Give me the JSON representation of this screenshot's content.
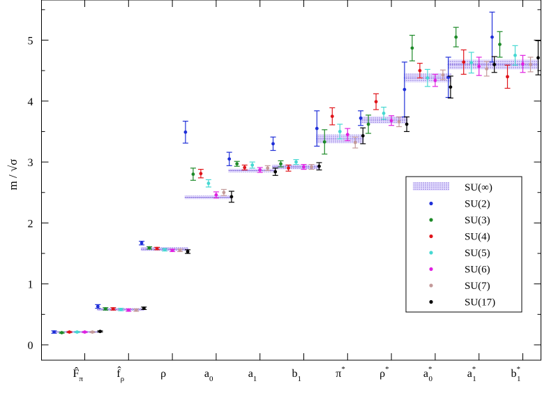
{
  "chart_data": {
    "type": "scatter",
    "ylabel": "m / √σ",
    "xlabel": "",
    "ylim": [
      -0.25,
      5.6
    ],
    "yticks": [
      0,
      1,
      2,
      3,
      4,
      5
    ],
    "grid": false,
    "legend_position": "right",
    "categories": [
      {
        "base": "F̂",
        "sub": "π",
        "sup": ""
      },
      {
        "base": "f̂",
        "sub": "ρ",
        "sup": ""
      },
      {
        "base": "ρ",
        "sub": "",
        "sup": ""
      },
      {
        "base": "a",
        "sub": "0",
        "sup": ""
      },
      {
        "base": "a",
        "sub": "1",
        "sup": ""
      },
      {
        "base": "b",
        "sub": "1",
        "sup": ""
      },
      {
        "base": "π",
        "sub": "",
        "sup": "*"
      },
      {
        "base": "ρ",
        "sub": "",
        "sup": "*"
      },
      {
        "base": "a",
        "sub": "0",
        "sup": "*"
      },
      {
        "base": "a",
        "sub": "1",
        "sup": "*"
      },
      {
        "base": "b",
        "sub": "1",
        "sup": "*"
      }
    ],
    "band": {
      "name": "SU(∞)",
      "color": "#7b61d9",
      "values": [
        0.21,
        0.58,
        1.57,
        2.42,
        2.86,
        2.92,
        3.38,
        3.69,
        4.38,
        4.6,
        4.6
      ],
      "errors": [
        0.01,
        0.02,
        0.03,
        0.03,
        0.03,
        0.04,
        0.07,
        0.06,
        0.07,
        0.08,
        0.08
      ]
    },
    "series": [
      {
        "name": "SU(2)",
        "color": "#1f2fd8",
        "values": [
          0.21,
          0.63,
          1.67,
          3.49,
          3.05,
          3.3,
          3.55,
          3.72,
          4.19,
          4.39,
          5.05
        ],
        "errors": [
          0.02,
          0.03,
          0.03,
          0.18,
          0.11,
          0.11,
          0.29,
          0.12,
          0.45,
          0.33,
          0.41
        ]
      },
      {
        "name": "SU(3)",
        "color": "#1d8a28",
        "values": [
          0.2,
          0.59,
          1.59,
          2.8,
          2.97,
          2.97,
          3.33,
          3.62,
          4.87,
          5.05,
          4.93
        ],
        "errors": [
          0.01,
          0.02,
          0.02,
          0.1,
          0.04,
          0.05,
          0.2,
          0.15,
          0.21,
          0.16,
          0.21
        ]
      },
      {
        "name": "SU(4)",
        "color": "#e0141a",
        "values": [
          0.21,
          0.59,
          1.58,
          2.81,
          2.91,
          2.9,
          3.75,
          3.99,
          4.5,
          4.64,
          4.4
        ],
        "errors": [
          0.01,
          0.02,
          0.02,
          0.07,
          0.04,
          0.05,
          0.14,
          0.13,
          0.12,
          0.2,
          0.19
        ]
      },
      {
        "name": "SU(5)",
        "color": "#46d8d2",
        "values": [
          0.21,
          0.58,
          1.56,
          2.65,
          2.95,
          3.0,
          3.5,
          3.8,
          4.38,
          4.63,
          4.75
        ],
        "errors": [
          0.01,
          0.02,
          0.02,
          0.06,
          0.05,
          0.04,
          0.12,
          0.1,
          0.14,
          0.17,
          0.16
        ]
      },
      {
        "name": "SU(6)",
        "color": "#e020e0",
        "values": [
          0.21,
          0.57,
          1.55,
          2.46,
          2.87,
          2.92,
          3.45,
          3.68,
          4.34,
          4.57,
          4.61
        ],
        "errors": [
          0.01,
          0.02,
          0.02,
          0.05,
          0.04,
          0.04,
          0.1,
          0.08,
          0.1,
          0.15,
          0.14
        ]
      },
      {
        "name": "SU(7)",
        "color": "#c49a9a",
        "values": [
          0.21,
          0.57,
          1.55,
          2.5,
          2.9,
          2.92,
          3.32,
          3.66,
          4.43,
          4.53,
          4.6
        ],
        "errors": [
          0.01,
          0.02,
          0.02,
          0.05,
          0.04,
          0.04,
          0.09,
          0.08,
          0.08,
          0.12,
          0.12
        ]
      },
      {
        "name": "SU(17)",
        "color": "#000000",
        "values": [
          0.22,
          0.6,
          1.53,
          2.43,
          2.84,
          2.93,
          3.43,
          3.62,
          4.23,
          4.6,
          4.71
        ],
        "errors": [
          0.01,
          0.02,
          0.03,
          0.09,
          0.06,
          0.06,
          0.13,
          0.12,
          0.18,
          0.13,
          0.28
        ]
      }
    ]
  }
}
